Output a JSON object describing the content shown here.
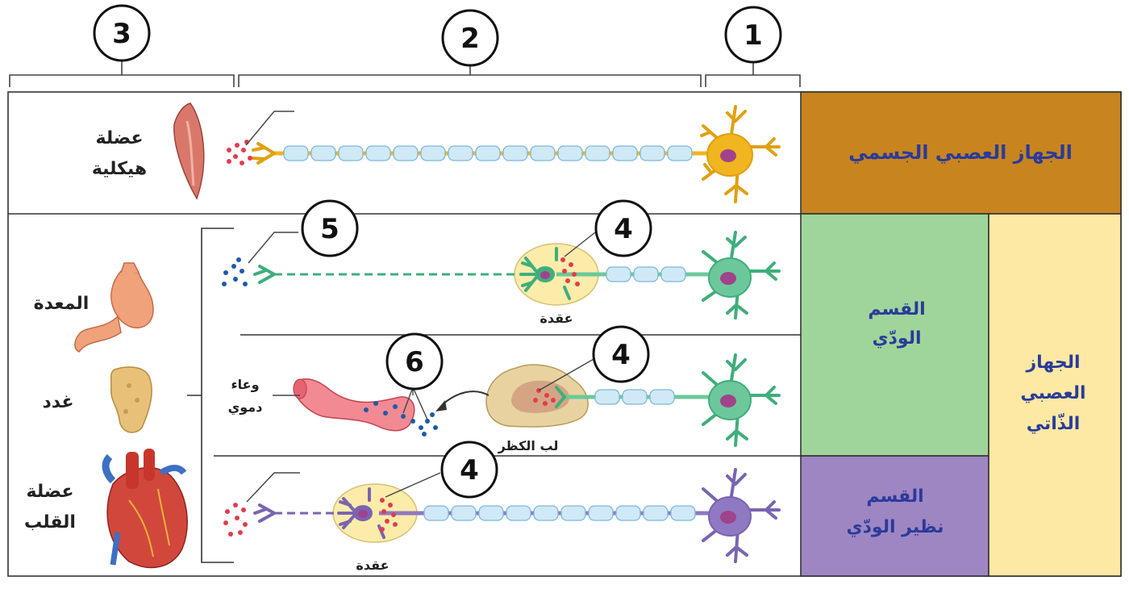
{
  "callouts": [
    "1",
    "2",
    "3",
    "4",
    "5",
    "6"
  ],
  "right_panels": {
    "somatic": "الجهاز العصبي الجسمي",
    "sympathetic_line1": "القسم",
    "sympathetic_line2": "الودّي",
    "parasympathetic_line1": "القسم",
    "parasympathetic_line2": "نظير الودّي",
    "autonomic_line1": "الجهاز",
    "autonomic_line2": "العصبي",
    "autonomic_line3": "الذّاتي"
  },
  "organs": {
    "skeletal_muscle_line1": "عضلة",
    "skeletal_muscle_line2": "هيكلية",
    "stomach": "المعدة",
    "glands": "غدد",
    "heart_muscle_line1": "عضلة",
    "heart_muscle_line2": "القلب"
  },
  "labels": {
    "ganglion": "عقدة",
    "adrenal_medulla": "لب الكظر",
    "blood_vessel_line1": "وعاء",
    "blood_vessel_line2": "دموي"
  },
  "colors": {
    "somatic_panel": "#c8841f",
    "sympathetic_panel": "#9fd59b",
    "parasympathetic_panel": "#9e86c3",
    "autonomic_panel": "#fde8a4",
    "somatic_neuron": "#f0b51f",
    "sympathetic_neuron": "#6cc89a",
    "parasympathetic_neuron": "#8e79c2",
    "myelin": "#cfe9f7",
    "acetylcholine_dots": "#e23c50",
    "norepinephrine_dots": "#1e5aa8",
    "panel_text": "#2a3b9a"
  }
}
